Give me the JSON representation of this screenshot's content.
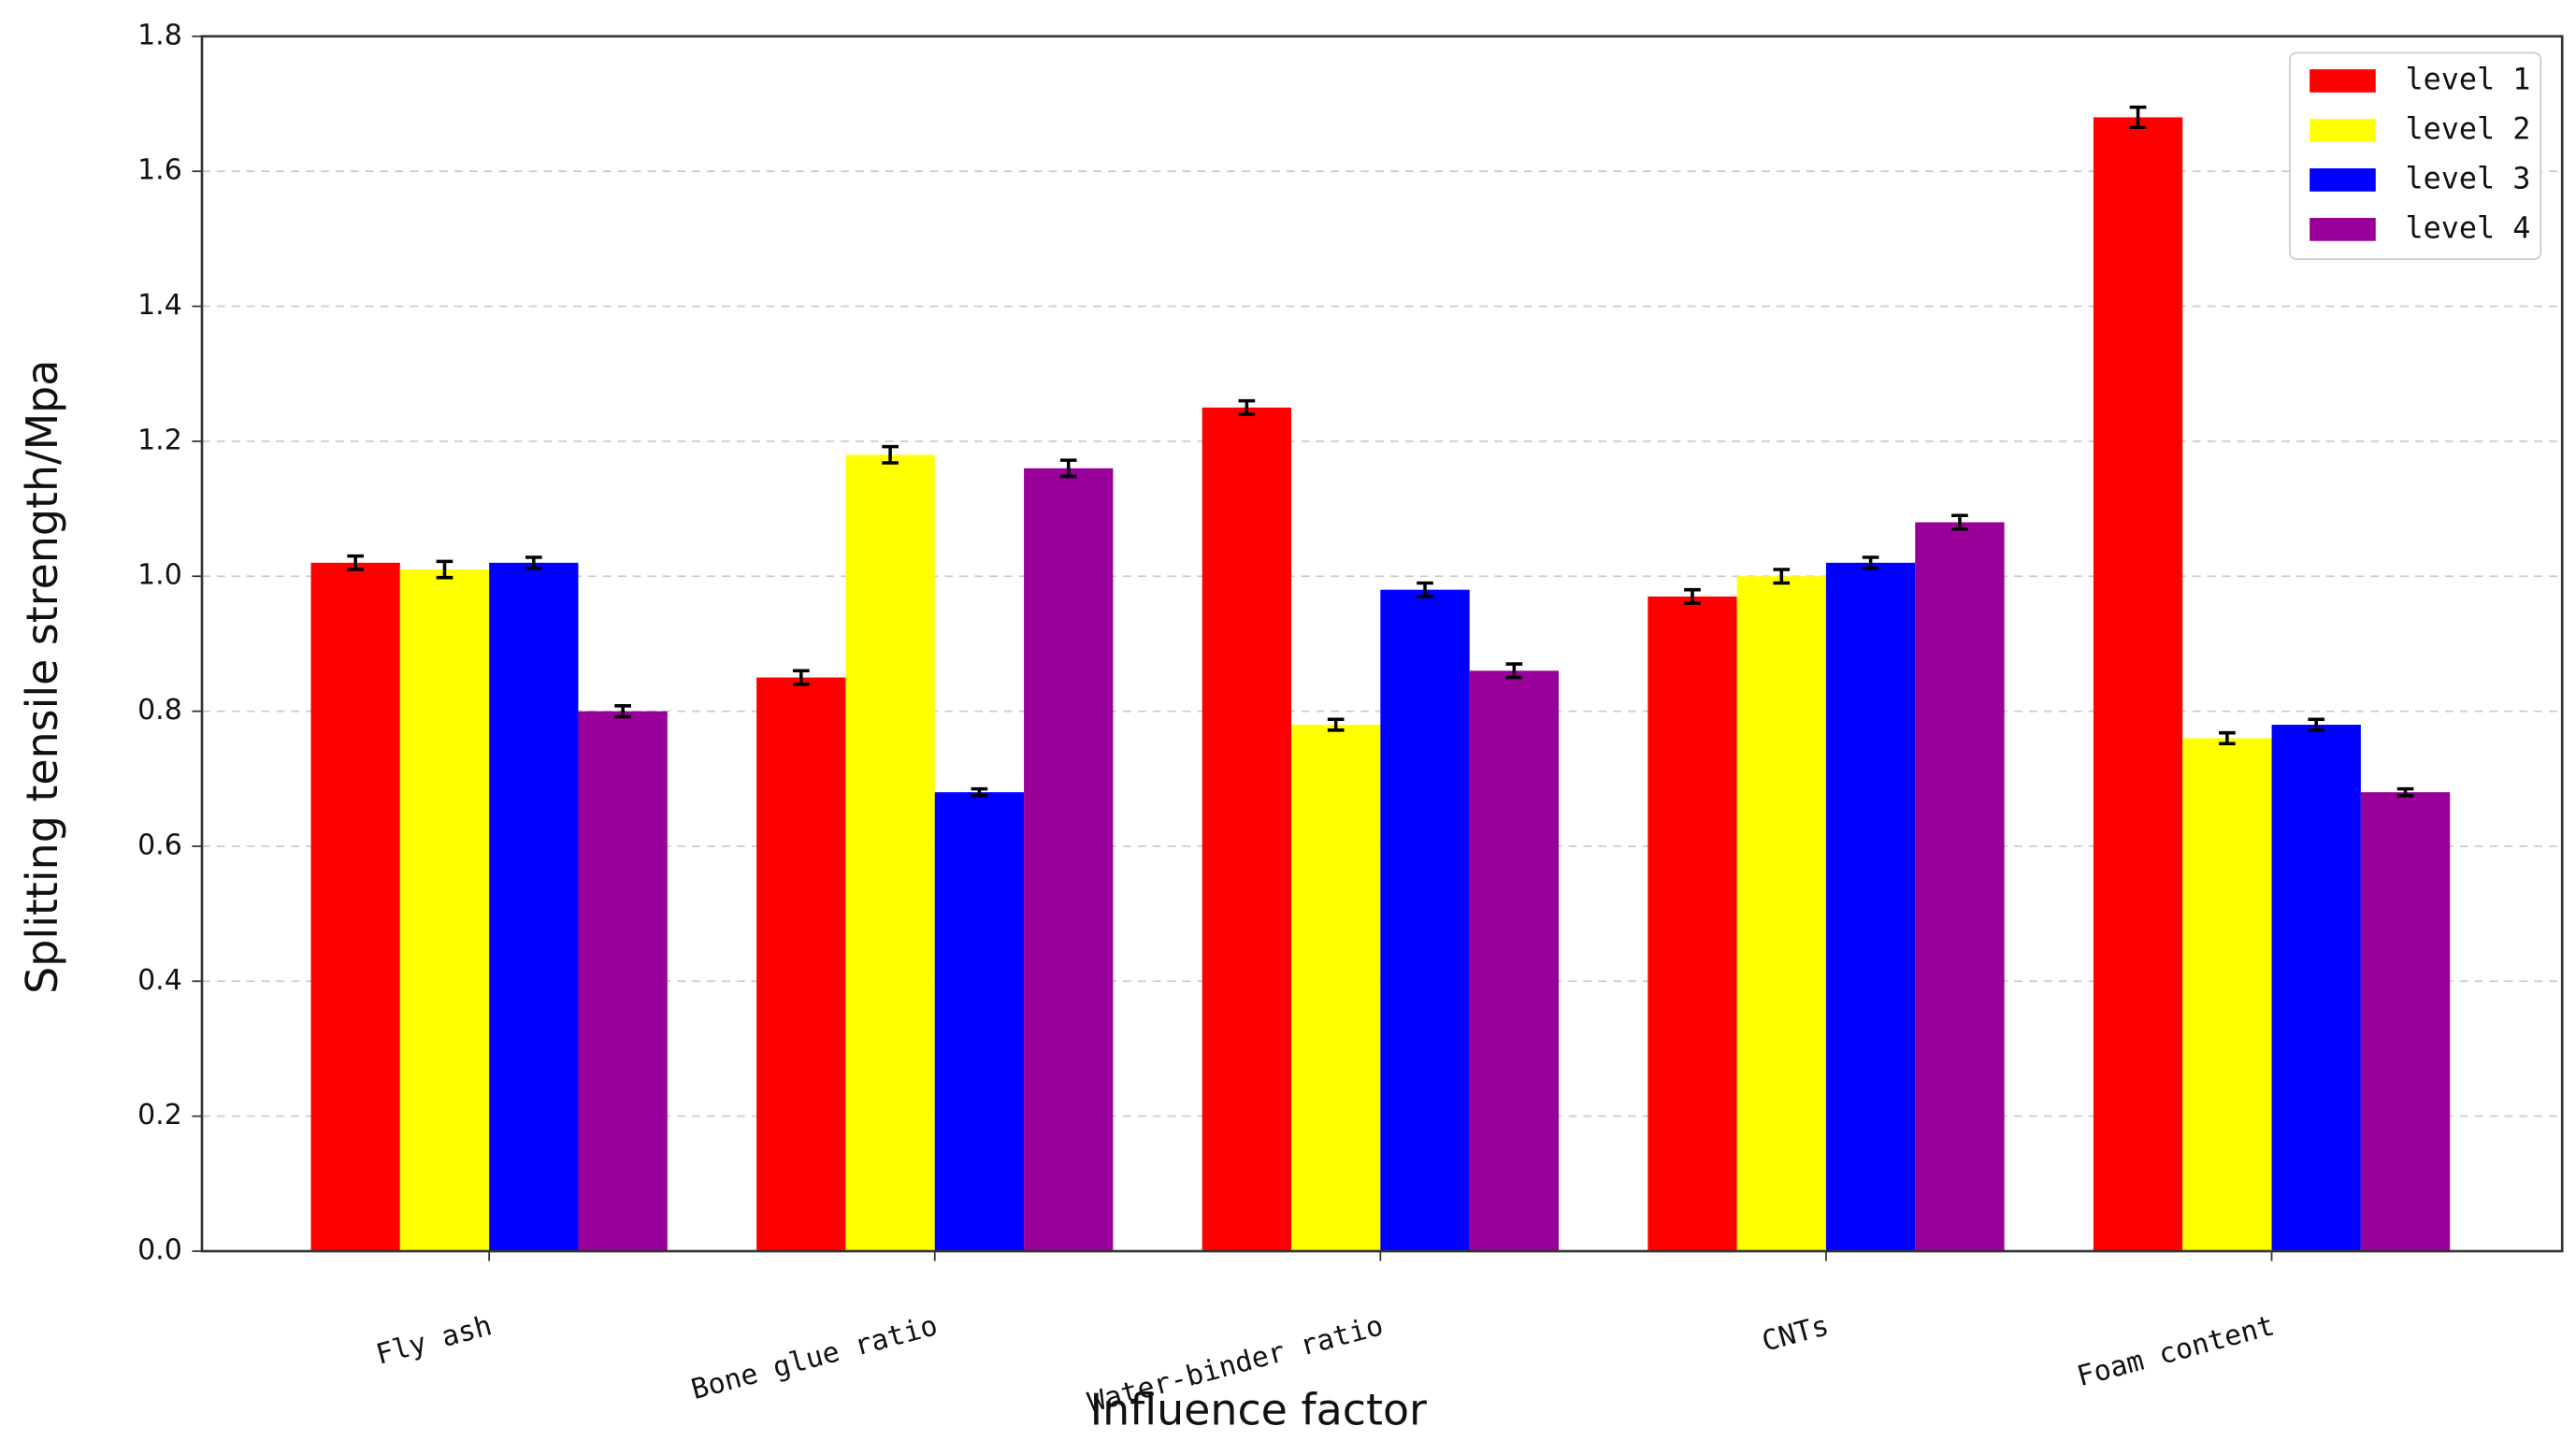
{
  "chart_data": {
    "type": "bar",
    "x_label": "Influence factor",
    "y_label": "Splitting tensile strength/Mpa",
    "categories": [
      "Fly ash",
      "Bone glue ratio",
      "Water-binder ratio",
      "CNTs",
      "Foam content"
    ],
    "series": [
      {
        "name": "level 1",
        "color": "#ff0000",
        "values": [
          1.02,
          0.85,
          1.25,
          0.97,
          1.68
        ],
        "errors": [
          0.01,
          0.01,
          0.01,
          0.01,
          0.015
        ]
      },
      {
        "name": "level 2",
        "color": "#ffff00",
        "values": [
          1.01,
          1.18,
          0.78,
          1.0,
          0.76
        ],
        "errors": [
          0.012,
          0.012,
          0.008,
          0.01,
          0.008
        ]
      },
      {
        "name": "level 3",
        "color": "#0000ff",
        "values": [
          1.02,
          0.68,
          0.98,
          1.02,
          0.78
        ],
        "errors": [
          0.008,
          0.005,
          0.01,
          0.008,
          0.008
        ]
      },
      {
        "name": "level 4",
        "color": "#990099",
        "values": [
          0.8,
          1.16,
          0.86,
          1.08,
          0.68
        ],
        "errors": [
          0.008,
          0.012,
          0.01,
          0.01,
          0.005
        ]
      }
    ],
    "ylim": [
      0,
      1.8
    ],
    "yticks": [
      {
        "value": 0,
        "label": "0.0"
      },
      0.2,
      0.4,
      0.6,
      0.8,
      {
        "value": 1,
        "label": "1.0"
      },
      1.2,
      1.4,
      1.6,
      1.8
    ],
    "grid": true,
    "legend": "upper right"
  }
}
